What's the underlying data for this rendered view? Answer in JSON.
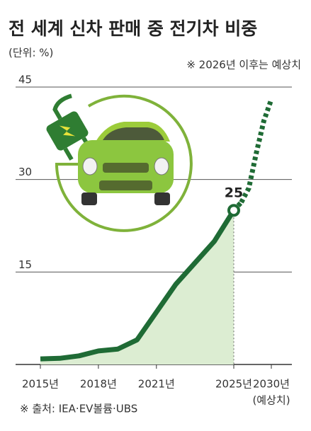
{
  "chart_data": {
    "type": "line",
    "title": "전 세계 신차 판매 중 전기차 비중",
    "subtitle": "(단위: %)",
    "note": "※ 2026년 이후는 예상치",
    "source": "※ 출처: IEA·EV볼륨·UBS",
    "categories": [
      "2015년",
      null,
      null,
      "2018년",
      null,
      null,
      "2021년",
      null,
      null,
      null,
      "2025년",
      null,
      null,
      null,
      null,
      "2030년"
    ],
    "forecast_label": "(예상치)",
    "values": [
      0.9,
      1.0,
      1.4,
      2.2,
      2.5,
      4.0,
      8.5,
      13.0,
      16.5,
      20.0,
      25,
      null,
      null,
      null,
      null,
      null
    ],
    "forecast_values": [
      null,
      null,
      null,
      null,
      null,
      null,
      null,
      null,
      null,
      null,
      null,
      26.3,
      28.6,
      34.3,
      39.5,
      43.0
    ],
    "color": "#1f6b35",
    "area_color": "#dcedd2",
    "ylim": [
      0,
      45
    ],
    "yticks": [
      15,
      30,
      45
    ],
    "grid": true
  }
}
